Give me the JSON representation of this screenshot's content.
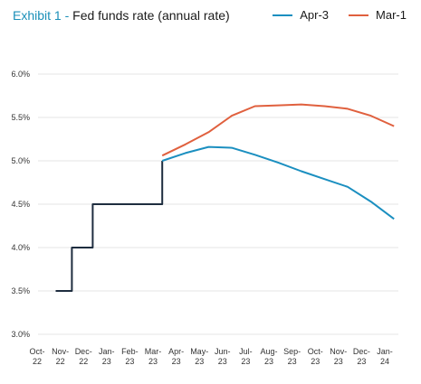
{
  "header": {
    "exhibit": "Exhibit 1 - ",
    "title": "Fed funds rate (annual rate)"
  },
  "colors": {
    "historical": "#1e2d3f",
    "apr3": "#1b8fc0",
    "mar1": "#e0603e",
    "grid": "#dedede"
  },
  "chart_data": {
    "type": "line",
    "title": "Fed funds rate (annual rate)",
    "categories": [
      "Oct-22",
      "Nov-22",
      "Dec-22",
      "Jan-23",
      "Feb-23",
      "Mar-23",
      "Apr-23",
      "May-23",
      "Jun-23",
      "Jul-23",
      "Aug-23",
      "Sep-23",
      "Oct-23",
      "Nov-23",
      "Dec-23",
      "Jan-24"
    ],
    "x_tick_labels": [
      [
        "Oct-",
        "22"
      ],
      [
        "Nov-",
        "22"
      ],
      [
        "Dec-",
        "22"
      ],
      [
        "Jan-",
        "23"
      ],
      [
        "Feb-",
        "23"
      ],
      [
        "Mar-",
        "23"
      ],
      [
        "Apr-",
        "23"
      ],
      [
        "May-",
        "23"
      ],
      [
        "Jun-",
        "23"
      ],
      [
        "Jul-",
        "23"
      ],
      [
        "Aug-",
        "23"
      ],
      [
        "Sep-",
        "23"
      ],
      [
        "Oct-",
        "23"
      ],
      [
        "Nov-",
        "23"
      ],
      [
        "Dec-",
        "23"
      ],
      [
        "Jan-",
        "24"
      ]
    ],
    "y_ticks": [
      3.0,
      3.5,
      4.0,
      4.5,
      5.0,
      5.5,
      6.0
    ],
    "y_tick_labels": [
      "3.0%",
      "3.5%",
      "4.0%",
      "4.5%",
      "5.0%",
      "5.5%",
      "6.0%"
    ],
    "ylim": [
      3.0,
      6.0
    ],
    "grid": false,
    "legend": "top-right",
    "series": [
      {
        "key": "historical",
        "color_key": "historical",
        "points": [
          [
            0.8,
            3.5
          ],
          [
            1.5,
            3.5
          ],
          [
            1.5,
            4.0
          ],
          [
            2.4,
            4.0
          ],
          [
            2.4,
            4.5
          ],
          [
            5.4,
            4.5
          ],
          [
            5.4,
            5.0
          ]
        ]
      },
      {
        "key": "apr3",
        "name": "Apr-3",
        "color_key": "apr3",
        "points": [
          [
            5.4,
            5.0
          ],
          [
            6.4,
            5.09
          ],
          [
            7.4,
            5.16
          ],
          [
            8.4,
            5.15
          ],
          [
            9.4,
            5.07
          ],
          [
            10.4,
            4.98
          ],
          [
            11.4,
            4.88
          ],
          [
            12.4,
            4.79
          ],
          [
            13.4,
            4.7
          ],
          [
            14.4,
            4.53
          ],
          [
            15.4,
            4.33
          ]
        ]
      },
      {
        "key": "mar1",
        "name": "Mar-1",
        "color_key": "mar1",
        "points": [
          [
            5.4,
            5.06
          ],
          [
            6.4,
            5.19
          ],
          [
            7.4,
            5.33
          ],
          [
            8.4,
            5.52
          ],
          [
            9.4,
            5.63
          ],
          [
            10.4,
            5.64
          ],
          [
            11.4,
            5.65
          ],
          [
            12.4,
            5.63
          ],
          [
            13.4,
            5.6
          ],
          [
            14.4,
            5.52
          ],
          [
            15.4,
            5.4
          ]
        ]
      }
    ]
  }
}
